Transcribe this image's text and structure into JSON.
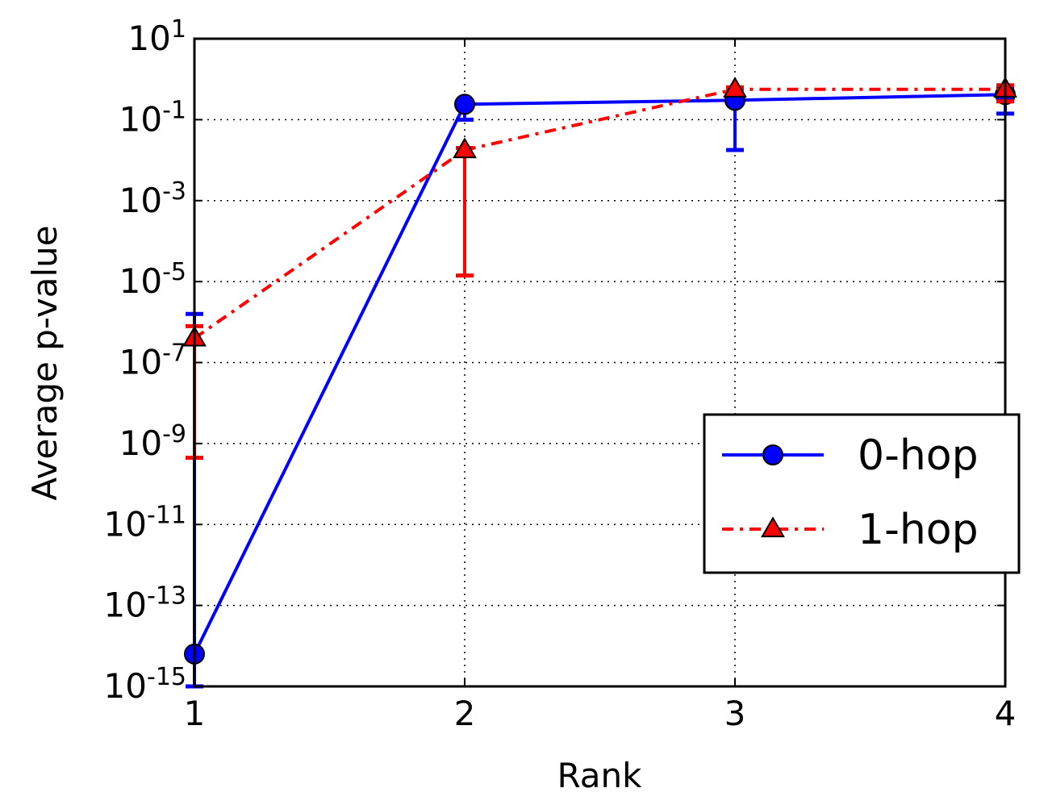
{
  "chart_data": {
    "type": "line",
    "title": "",
    "xlabel": "Rank",
    "ylabel": "Average p-value",
    "xlim": [
      1,
      4
    ],
    "ylim_log10": [
      -15,
      1
    ],
    "y_scale": "log",
    "x_ticks": [
      1,
      2,
      3,
      4
    ],
    "x_tick_labels": [
      "1",
      "2",
      "3",
      "4"
    ],
    "y_tick_exponents": [
      1,
      -1,
      -3,
      -5,
      -7,
      -9,
      -11,
      -13,
      -15
    ],
    "y_tick_base": "10",
    "y_tick_exp_labels": [
      "1",
      "-1",
      "-3",
      "-5",
      "-7",
      "-9",
      "-11",
      "-13",
      "-15"
    ],
    "grid": true,
    "legend_position": "center-right",
    "series": [
      {
        "name": "0-hop",
        "color": "#0000ff",
        "line_style": "solid",
        "marker": "circle",
        "x": [
          1,
          2,
          3,
          4
        ],
        "y_log10": [
          -14.2,
          -0.62,
          -0.52,
          -0.38
        ],
        "err_low_log10": [
          -15,
          -1.0,
          -1.75,
          -0.85
        ],
        "err_high_log10": [
          -5.8,
          -0.62,
          -0.52,
          -0.2
        ]
      },
      {
        "name": "1-hop",
        "color": "#ff0000",
        "line_style": "dashdot",
        "marker": "triangle",
        "x": [
          1,
          2,
          3,
          4
        ],
        "y_log10": [
          -6.4,
          -1.75,
          -0.25,
          -0.25
        ],
        "err_low_log10": [
          -9.35,
          -4.85,
          -0.25,
          -0.55
        ],
        "err_high_log10": [
          -6.1,
          -1.7,
          -0.2,
          -0.15
        ]
      }
    ]
  }
}
